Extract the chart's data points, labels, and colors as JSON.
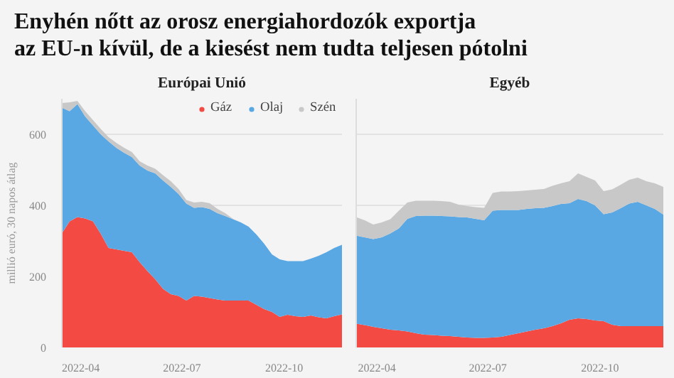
{
  "chart_data": [
    {
      "type": "area",
      "stacked": true,
      "title": "Enyhén nőtt az orosz energiahordozók exportja\naz EU-n kívül, de a kiesést nem tudta teljesen pótolni",
      "subtitle": "Európai Unió",
      "ylabel": "millió euró, 30 napos átlag",
      "x": [
        "2022-03-15",
        "2022-03-22",
        "2022-03-29",
        "2022-04-05",
        "2022-04-12",
        "2022-04-19",
        "2022-04-26",
        "2022-05-03",
        "2022-05-10",
        "2022-05-17",
        "2022-05-24",
        "2022-05-31",
        "2022-06-07",
        "2022-06-14",
        "2022-06-21",
        "2022-06-28",
        "2022-07-05",
        "2022-07-12",
        "2022-07-19",
        "2022-07-26",
        "2022-08-02",
        "2022-08-09",
        "2022-08-16",
        "2022-08-23",
        "2022-08-30",
        "2022-09-06",
        "2022-09-13",
        "2022-09-20",
        "2022-09-27",
        "2022-10-04",
        "2022-10-11",
        "2022-10-18",
        "2022-10-25",
        "2022-11-01",
        "2022-11-08",
        "2022-11-15",
        "2022-11-22"
      ],
      "series": [
        {
          "name": "Gáz",
          "color": "#f44a44",
          "values": [
            321,
            355,
            367,
            363,
            355,
            320,
            280,
            276,
            272,
            268,
            240,
            215,
            192,
            165,
            150,
            145,
            132,
            145,
            143,
            139,
            135,
            132,
            132,
            132,
            132,
            120,
            108,
            100,
            86,
            92,
            88,
            86,
            90,
            85,
            82,
            88,
            93
          ]
        },
        {
          "name": "Olaj",
          "color": "#5aa8e3",
          "values": [
            354,
            310,
            318,
            287,
            270,
            280,
            300,
            286,
            276,
            268,
            272,
            283,
            298,
            305,
            302,
            287,
            273,
            248,
            252,
            251,
            243,
            238,
            229,
            220,
            208,
            198,
            184,
            162,
            162,
            151,
            155,
            157,
            160,
            173,
            186,
            192,
            196
          ]
        },
        {
          "name": "Szén",
          "color": "#c8c8c8",
          "values": [
            13,
            25,
            9,
            15,
            15,
            15,
            12,
            14,
            14,
            14,
            12,
            14,
            13,
            15,
            16,
            14,
            10,
            15,
            15,
            16,
            12,
            8,
            1,
            0,
            0,
            0,
            0,
            0,
            0,
            0,
            0,
            0,
            0,
            0,
            0,
            0,
            0
          ]
        }
      ],
      "xlim": [
        "2022-03-15",
        "2022-11-22"
      ],
      "xticks": [
        {
          "value": "2022-04-01",
          "label": "2022-04"
        },
        {
          "value": "2022-07-01",
          "label": "2022-07"
        },
        {
          "value": "2022-10-01",
          "label": "2022-10"
        }
      ],
      "ylim": [
        0,
        700
      ],
      "yticks": [
        0,
        200,
        400,
        600
      ],
      "grid": "y",
      "legend": "top right"
    },
    {
      "type": "area",
      "stacked": true,
      "title": "Egyéb",
      "x": [
        "2022-03-15",
        "2022-03-22",
        "2022-03-29",
        "2022-04-05",
        "2022-04-12",
        "2022-04-19",
        "2022-04-26",
        "2022-05-03",
        "2022-05-10",
        "2022-05-17",
        "2022-05-24",
        "2022-05-31",
        "2022-06-07",
        "2022-06-14",
        "2022-06-21",
        "2022-06-28",
        "2022-07-05",
        "2022-07-12",
        "2022-07-19",
        "2022-07-26",
        "2022-08-02",
        "2022-08-09",
        "2022-08-16",
        "2022-08-23",
        "2022-08-30",
        "2022-09-06",
        "2022-09-13",
        "2022-09-20",
        "2022-09-27",
        "2022-10-04",
        "2022-10-11",
        "2022-10-18",
        "2022-10-25",
        "2022-11-01",
        "2022-11-08",
        "2022-11-15",
        "2022-11-22"
      ],
      "series": [
        {
          "color": "#f44a44",
          "values": [
            67,
            63,
            58,
            54,
            50,
            48,
            45,
            40,
            36,
            35,
            33,
            32,
            30,
            28,
            27,
            27,
            28,
            30,
            35,
            40,
            45,
            50,
            54,
            60,
            68,
            78,
            82,
            80,
            76,
            74,
            64,
            60,
            60,
            60,
            60,
            60,
            60
          ]
        },
        {
          "color": "#5aa8e3",
          "values": [
            248,
            247,
            247,
            256,
            271,
            287,
            317,
            330,
            335,
            336,
            337,
            337,
            337,
            338,
            335,
            331,
            357,
            357,
            352,
            347,
            345,
            342,
            339,
            338,
            336,
            328,
            336,
            332,
            324,
            301,
            316,
            332,
            345,
            350,
            340,
            330,
            314
          ]
        },
        {
          "color": "#c8c8c8",
          "values": [
            52,
            48,
            41,
            42,
            40,
            50,
            46,
            43,
            42,
            42,
            42,
            41,
            35,
            32,
            33,
            35,
            50,
            52,
            52,
            53,
            52,
            52,
            53,
            57,
            58,
            62,
            72,
            68,
            70,
            65,
            65,
            66,
            67,
            68,
            68,
            72,
            78
          ]
        }
      ],
      "xlim": [
        "2022-03-15",
        "2022-11-22"
      ],
      "xticks": [
        {
          "value": "2022-04-01",
          "label": "2022-04"
        },
        {
          "value": "2022-07-01",
          "label": "2022-07"
        },
        {
          "value": "2022-10-01",
          "label": "2022-10"
        }
      ],
      "ylim": [
        0,
        700
      ],
      "yticks": [
        0,
        200,
        400,
        600
      ],
      "grid": "y",
      "tick_labels": "x"
    }
  ]
}
